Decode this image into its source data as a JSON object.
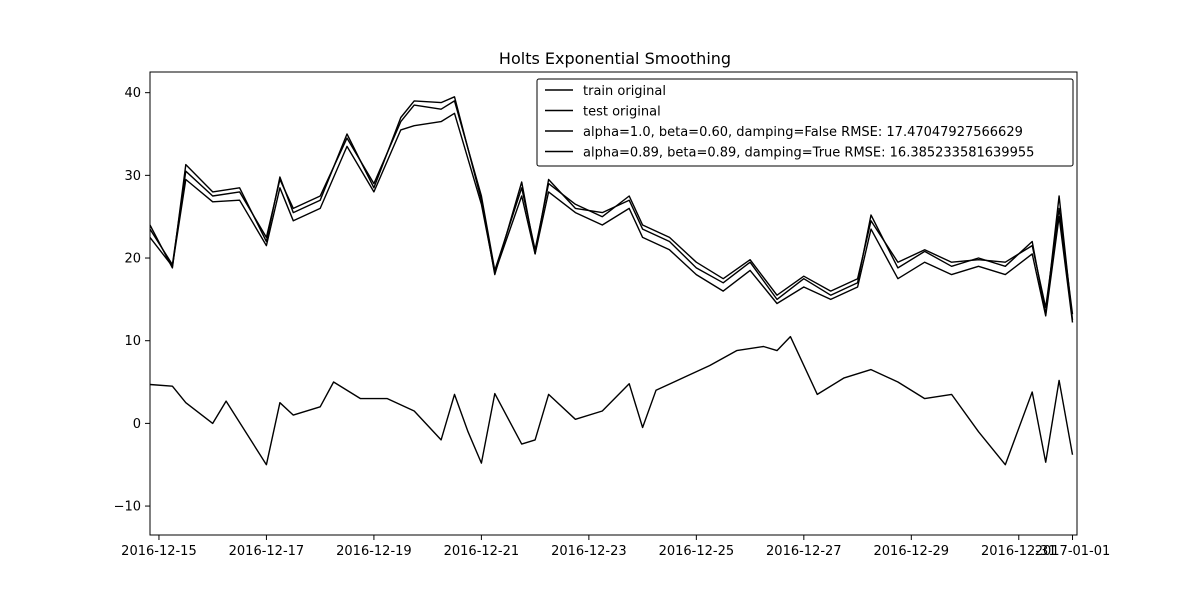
{
  "chart_data": {
    "type": "line",
    "title": "Holts Exponential Smoothing",
    "xlabel": "",
    "ylabel": "",
    "xlim": [
      "2016-12-14T20:00",
      "2017-01-01T02:00"
    ],
    "ylim": [
      -13.5,
      42.5
    ],
    "x_ticks": [
      "2016-12-15",
      "2016-12-17",
      "2016-12-19",
      "2016-12-21",
      "2016-12-23",
      "2016-12-25",
      "2016-12-27",
      "2016-12-29",
      "2016-12-31",
      "2017-01-01"
    ],
    "x_tick_labels": [
      "2016-12-15",
      "2016-12-17",
      "2016-12-19",
      "2016-12-21",
      "2016-12-23",
      "2016-12-25",
      "2016-12-27",
      "2016-12-29",
      "2016-12-31",
      "2017-01-01"
    ],
    "y_ticks": [
      -10,
      0,
      10,
      20,
      30,
      40
    ],
    "y_tick_labels": [
      "−10",
      "0",
      "10",
      "20",
      "30",
      "40"
    ],
    "grid": false,
    "legend_position": "top-right",
    "series": [
      {
        "name": "train original",
        "color": "#000000",
        "x": [
          "2016-12-14T20:00",
          "2016-12-15T06:00",
          "2016-12-15T12:00",
          "2016-12-16T00:00",
          "2016-12-16T06:00",
          "2016-12-17T00:00",
          "2016-12-17T06:00",
          "2016-12-17T12:00",
          "2016-12-18T00:00",
          "2016-12-18T06:00",
          "2016-12-18T18:00",
          "2016-12-19T06:00",
          "2016-12-19T18:00",
          "2016-12-20T06:00",
          "2016-12-20T12:00",
          "2016-12-20T18:00",
          "2016-12-21T00:00",
          "2016-12-21T06:00",
          "2016-12-21T18:00",
          "2016-12-22T00:00",
          "2016-12-22T06:00",
          "2016-12-22T18:00",
          "2016-12-23T06:00",
          "2016-12-23T18:00",
          "2016-12-24T00:00",
          "2016-12-24T06:00",
          "2016-12-24T18:00",
          "2016-12-25T06:00",
          "2016-12-25T18:00",
          "2016-12-26T06:00",
          "2016-12-26T12:00",
          "2016-12-26T18:00",
          "2016-12-27T06:00",
          "2016-12-27T18:00",
          "2016-12-28T06:00",
          "2016-12-28T18:00",
          "2016-12-29T06:00",
          "2016-12-29T18:00",
          "2016-12-30T06:00",
          "2016-12-30T18:00",
          "2016-12-31T06:00",
          "2016-12-31T12:00",
          "2016-12-31T18:00",
          "2017-01-01T00:00"
        ],
        "y": [
          4.7,
          4.5,
          2.5,
          0.0,
          2.7,
          -5.0,
          2.5,
          1.0,
          2.0,
          5.0,
          3.0,
          3.0,
          1.5,
          -2.0,
          3.5,
          -1.0,
          -4.8,
          3.6,
          -2.5,
          -2.0,
          3.5,
          0.5,
          1.5,
          4.8,
          -0.5,
          4.0,
          5.5,
          7.0,
          8.8,
          9.3,
          8.8,
          10.5,
          3.5,
          5.5,
          6.5,
          5.0,
          3.0,
          3.5,
          -1.0,
          -5.0,
          3.8,
          -4.7,
          5.2,
          -3.8
        ]
      },
      {
        "name": "test original",
        "color": "#000000",
        "x": [
          "2016-12-14T20:00",
          "2016-12-15T06:00",
          "2016-12-15T12:00",
          "2016-12-16T00:00",
          "2016-12-16T12:00",
          "2016-12-17T00:00",
          "2016-12-17T06:00",
          "2016-12-17T12:00",
          "2016-12-18T00:00",
          "2016-12-18T12:00",
          "2016-12-19T00:00",
          "2016-12-19T12:00",
          "2016-12-19T18:00",
          "2016-12-20T06:00",
          "2016-12-20T12:00",
          "2016-12-21T00:00",
          "2016-12-21T06:00",
          "2016-12-21T18:00",
          "2016-12-22T00:00",
          "2016-12-22T06:00",
          "2016-12-22T18:00",
          "2016-12-23T06:00",
          "2016-12-23T18:00",
          "2016-12-24T00:00",
          "2016-12-24T12:00",
          "2016-12-25T00:00",
          "2016-12-25T12:00",
          "2016-12-26T00:00",
          "2016-12-26T12:00",
          "2016-12-27T00:00",
          "2016-12-27T12:00",
          "2016-12-28T00:00",
          "2016-12-28T06:00",
          "2016-12-28T18:00",
          "2016-12-29T06:00",
          "2016-12-29T18:00",
          "2016-12-30T06:00",
          "2016-12-30T18:00",
          "2016-12-31T06:00",
          "2016-12-31T12:00",
          "2016-12-31T18:00",
          "2017-01-01T00:00"
        ],
        "y": [
          24.0,
          18.8,
          31.3,
          28.0,
          28.5,
          22.0,
          29.8,
          25.5,
          27.0,
          35.0,
          28.5,
          37.0,
          39.0,
          38.8,
          39.5,
          27.0,
          18.0,
          29.2,
          20.5,
          29.5,
          26.0,
          25.5,
          27.0,
          23.5,
          22.0,
          18.8,
          17.0,
          19.5,
          15.0,
          17.5,
          15.5,
          17.0,
          25.2,
          18.8,
          20.8,
          19.0,
          20.0,
          19.0,
          22.0,
          13.2,
          27.5,
          12.5
        ]
      },
      {
        "name": "alpha=1.0, beta=0.60, damping=False RMSE: 17.47047927566629",
        "color": "#000000",
        "x": [
          "2016-12-14T20:00",
          "2016-12-15T06:00",
          "2016-12-15T12:00",
          "2016-12-16T00:00",
          "2016-12-16T12:00",
          "2016-12-17T00:00",
          "2016-12-17T06:00",
          "2016-12-17T12:00",
          "2016-12-18T00:00",
          "2016-12-18T12:00",
          "2016-12-19T00:00",
          "2016-12-19T12:00",
          "2016-12-19T18:00",
          "2016-12-20T06:00",
          "2016-12-20T12:00",
          "2016-12-21T00:00",
          "2016-12-21T06:00",
          "2016-12-21T18:00",
          "2016-12-22T00:00",
          "2016-12-22T06:00",
          "2016-12-22T18:00",
          "2016-12-23T06:00",
          "2016-12-23T18:00",
          "2016-12-24T00:00",
          "2016-12-24T12:00",
          "2016-12-25T00:00",
          "2016-12-25T12:00",
          "2016-12-26T00:00",
          "2016-12-26T12:00",
          "2016-12-27T00:00",
          "2016-12-27T12:00",
          "2016-12-28T00:00",
          "2016-12-28T06:00",
          "2016-12-28T18:00",
          "2016-12-29T06:00",
          "2016-12-29T18:00",
          "2016-12-30T06:00",
          "2016-12-30T18:00",
          "2016-12-31T06:00",
          "2016-12-31T12:00",
          "2016-12-31T18:00",
          "2017-01-01T00:00"
        ],
        "y": [
          23.5,
          19.2,
          30.5,
          27.5,
          28.0,
          22.5,
          29.5,
          26.0,
          27.5,
          34.5,
          29.0,
          36.5,
          38.5,
          38.0,
          39.0,
          27.5,
          18.5,
          28.5,
          21.0,
          29.0,
          26.5,
          25.0,
          27.5,
          24.0,
          22.5,
          19.5,
          17.5,
          19.8,
          15.5,
          17.8,
          16.0,
          17.5,
          24.5,
          19.5,
          21.0,
          19.5,
          19.8,
          19.5,
          21.5,
          14.0,
          26.0,
          13.2
        ]
      },
      {
        "name": "alpha=0.89, beta=0.89, damping=True RMSE: 16.385233581639955",
        "color": "#000000",
        "x": [
          "2016-12-14T20:00",
          "2016-12-15T06:00",
          "2016-12-15T12:00",
          "2016-12-16T00:00",
          "2016-12-16T12:00",
          "2016-12-17T00:00",
          "2016-12-17T06:00",
          "2016-12-17T12:00",
          "2016-12-18T00:00",
          "2016-12-18T12:00",
          "2016-12-19T00:00",
          "2016-12-19T12:00",
          "2016-12-19T18:00",
          "2016-12-20T06:00",
          "2016-12-20T12:00",
          "2016-12-21T00:00",
          "2016-12-21T06:00",
          "2016-12-21T18:00",
          "2016-12-22T00:00",
          "2016-12-22T06:00",
          "2016-12-22T18:00",
          "2016-12-23T06:00",
          "2016-12-23T18:00",
          "2016-12-24T00:00",
          "2016-12-24T12:00",
          "2016-12-25T00:00",
          "2016-12-25T12:00",
          "2016-12-26T00:00",
          "2016-12-26T12:00",
          "2016-12-27T00:00",
          "2016-12-27T12:00",
          "2016-12-28T00:00",
          "2016-12-28T06:00",
          "2016-12-28T18:00",
          "2016-12-29T06:00",
          "2016-12-29T18:00",
          "2016-12-30T06:00",
          "2016-12-30T18:00",
          "2016-12-31T06:00",
          "2016-12-31T12:00",
          "2016-12-31T18:00",
          "2017-01-01T00:00"
        ],
        "y": [
          22.5,
          19.0,
          29.5,
          26.8,
          27.0,
          21.5,
          28.5,
          24.5,
          26.0,
          33.5,
          28.0,
          35.5,
          36.0,
          36.5,
          37.5,
          26.5,
          18.2,
          27.5,
          20.5,
          28.0,
          25.5,
          24.0,
          26.0,
          22.5,
          21.0,
          18.0,
          16.0,
          18.5,
          14.5,
          16.5,
          15.0,
          16.5,
          23.5,
          17.5,
          19.5,
          18.0,
          19.0,
          18.0,
          20.5,
          13.0,
          25.0,
          12.2
        ]
      }
    ]
  }
}
